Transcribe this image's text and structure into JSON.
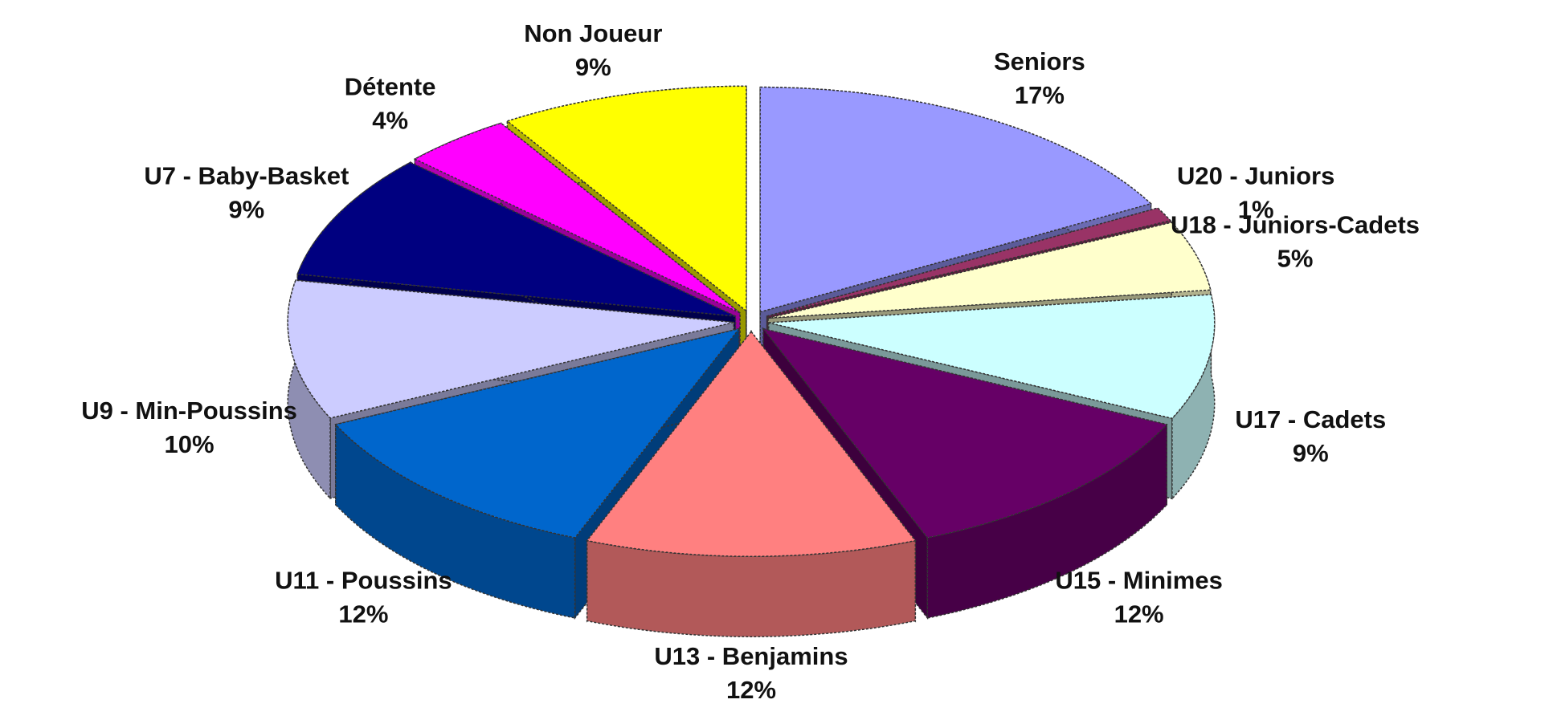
{
  "chart_data": {
    "type": "pie",
    "categories": [
      "Seniors",
      "U20 - Juniors",
      "U18 - Juniors-Cadets",
      "U17 - Cadets",
      "U15 - Minimes",
      "U13 - Benjamins",
      "U11 - Poussins",
      "U9 - Min-Poussins",
      "U7 - Baby-Basket",
      "Détente",
      "Non Joueur"
    ],
    "values": [
      17,
      1,
      5,
      9,
      12,
      12,
      12,
      10,
      9,
      4,
      9
    ],
    "value_labels": [
      "17%",
      "1%",
      "5%",
      "9%",
      "12%",
      "12%",
      "12%",
      "10%",
      "9%",
      "4%",
      "9%"
    ],
    "colors": [
      "#9999ff",
      "#993366",
      "#ffffcc",
      "#ccffff",
      "#660066",
      "#ff8080",
      "#0066cc",
      "#ccccff",
      "#000080",
      "#ff00ff",
      "#ffff00"
    ]
  }
}
